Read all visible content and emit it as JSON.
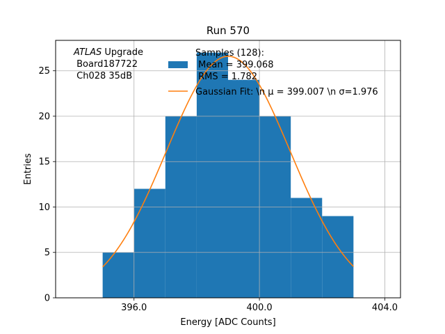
{
  "chart_data": {
    "type": "bar",
    "title": "Run 570",
    "xlabel": "Energy [ADC Counts]",
    "ylabel": "Entries",
    "xlim": [
      393.5,
      404.5
    ],
    "ylim": [
      0,
      28.35
    ],
    "grid": true,
    "bin_edges": [
      395,
      396,
      397,
      398,
      399,
      400,
      401,
      402,
      403
    ],
    "values": [
      5,
      12,
      20,
      27,
      24,
      20,
      11,
      9
    ],
    "bar_color": "#1f77b4",
    "x_ticks": [
      {
        "value": 396,
        "label": "396.0"
      },
      {
        "value": 400,
        "label": "400.0"
      },
      {
        "value": 404,
        "label": "404.0"
      }
    ],
    "y_ticks": [
      {
        "value": 0,
        "label": "0"
      },
      {
        "value": 5,
        "label": "5"
      },
      {
        "value": 10,
        "label": "10"
      },
      {
        "value": 15,
        "label": "15"
      },
      {
        "value": 20,
        "label": "20"
      },
      {
        "value": 25,
        "label": "25"
      }
    ],
    "fit": {
      "name": "Gaussian Fit",
      "mu": 399.007,
      "sigma": 1.976,
      "amplitude": 26.6,
      "x_range": [
        395.0,
        403.0
      ],
      "color": "#ff7f0e"
    },
    "legend": {
      "placement": "top-center",
      "entries": [
        {
          "kind": "patch",
          "color": "#1f77b4",
          "lines": [
            "Samples (128):",
            " Mean = 399.068",
            " RMS = 1.782"
          ]
        },
        {
          "kind": "line",
          "color": "#ff7f0e",
          "lines": [
            "Gaussian Fit: \\n μ = 399.007 \\n σ=1.976"
          ]
        }
      ]
    },
    "annotation": {
      "experiment": "ATLAS",
      "suffix": " Upgrade",
      "line2": " Board187722",
      "line3": " Ch028 35dB"
    }
  }
}
